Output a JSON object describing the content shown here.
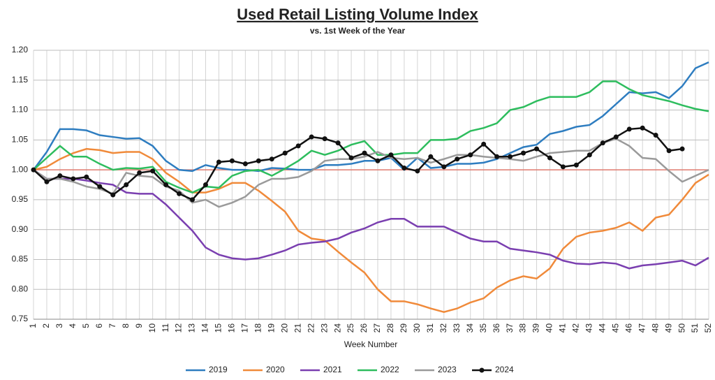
{
  "chart_data": {
    "type": "line",
    "title": "Used Retail Listing Volume Index",
    "subtitle": "vs. 1st Week of the Year",
    "x_label": "Week Number",
    "categories": [
      1,
      2,
      3,
      4,
      5,
      6,
      7,
      8,
      9,
      10,
      11,
      12,
      13,
      14,
      15,
      16,
      17,
      18,
      19,
      20,
      21,
      22,
      23,
      24,
      25,
      26,
      27,
      28,
      29,
      30,
      31,
      32,
      33,
      34,
      35,
      36,
      37,
      38,
      39,
      40,
      41,
      42,
      43,
      44,
      45,
      46,
      47,
      48,
      49,
      50,
      51,
      52
    ],
    "ylim": [
      0.75,
      1.2
    ],
    "yticks": [
      {
        "value": 0.75,
        "label": "0.75"
      },
      {
        "value": 0.8,
        "label": "0.80"
      },
      {
        "value": 0.85,
        "label": "0.85"
      },
      {
        "value": 0.9,
        "label": "0.90"
      },
      {
        "value": 0.95,
        "label": "0.95"
      },
      {
        "value": 1.0,
        "label": "1.00"
      },
      {
        "value": 1.05,
        "label": "1.05"
      },
      {
        "value": 1.1,
        "label": "1.10"
      },
      {
        "value": 1.15,
        "label": "1.15"
      },
      {
        "value": 1.2,
        "label": "1.20"
      }
    ],
    "reference_line": 1,
    "reference_color": "#e07b6f",
    "grid": true,
    "legend": "bottom",
    "series": [
      {
        "name": "2019",
        "color": "#2e7dc0",
        "values": [
          1.0,
          1.03,
          1.068,
          1.068,
          1.066,
          1.058,
          1.055,
          1.052,
          1.053,
          1.04,
          1.015,
          1.0,
          0.998,
          1.008,
          1.003,
          1.0,
          1.0,
          0.998,
          1.003,
          1.002,
          1.0,
          1.0,
          1.008,
          1.008,
          1.01,
          1.015,
          1.015,
          1.02,
          1.0,
          1.02,
          1.003,
          1.005,
          1.01,
          1.01,
          1.012,
          1.018,
          1.028,
          1.038,
          1.042,
          1.06,
          1.065,
          1.072,
          1.075,
          1.09,
          1.11,
          1.13,
          1.128,
          1.13,
          1.12,
          1.14,
          1.17,
          1.18
        ]
      },
      {
        "name": "2020",
        "color": "#f08a3a",
        "values": [
          1.0,
          1.005,
          1.018,
          1.028,
          1.035,
          1.033,
          1.028,
          1.03,
          1.03,
          1.018,
          0.995,
          0.98,
          0.962,
          0.962,
          0.968,
          0.978,
          0.978,
          0.965,
          0.948,
          0.93,
          0.898,
          0.885,
          0.882,
          0.863,
          0.845,
          0.828,
          0.8,
          0.78,
          0.78,
          0.775,
          0.768,
          0.762,
          0.768,
          0.778,
          0.785,
          0.803,
          0.815,
          0.822,
          0.818,
          0.835,
          0.868,
          0.888,
          0.895,
          0.898,
          0.903,
          0.912,
          0.898,
          0.92,
          0.925,
          0.95,
          0.978,
          0.992
        ]
      },
      {
        "name": "2021",
        "color": "#7a3fb0",
        "values": [
          1.0,
          0.985,
          0.985,
          0.985,
          0.982,
          0.978,
          0.975,
          0.962,
          0.96,
          0.96,
          0.942,
          0.92,
          0.898,
          0.87,
          0.858,
          0.852,
          0.85,
          0.852,
          0.858,
          0.865,
          0.875,
          0.878,
          0.88,
          0.885,
          0.895,
          0.902,
          0.912,
          0.918,
          0.918,
          0.905,
          0.905,
          0.905,
          0.895,
          0.885,
          0.88,
          0.88,
          0.868,
          0.865,
          0.862,
          0.858,
          0.848,
          0.843,
          0.842,
          0.845,
          0.843,
          0.835,
          0.84,
          0.842,
          0.845,
          0.848,
          0.84,
          0.853
        ]
      },
      {
        "name": "2022",
        "color": "#2ebd5e",
        "values": [
          1.0,
          1.02,
          1.04,
          1.022,
          1.022,
          1.01,
          1.0,
          1.003,
          1.002,
          1.005,
          0.98,
          0.97,
          0.962,
          0.972,
          0.97,
          0.99,
          0.998,
          1.0,
          0.99,
          1.002,
          1.015,
          1.032,
          1.025,
          1.032,
          1.042,
          1.048,
          1.025,
          1.025,
          1.028,
          1.028,
          1.05,
          1.05,
          1.052,
          1.065,
          1.07,
          1.078,
          1.1,
          1.105,
          1.115,
          1.122,
          1.122,
          1.122,
          1.13,
          1.148,
          1.148,
          1.135,
          1.125,
          1.12,
          1.115,
          1.108,
          1.102,
          1.098
        ]
      },
      {
        "name": "2023",
        "color": "#9a9a9a",
        "values": [
          1.0,
          0.985,
          0.985,
          0.98,
          0.972,
          0.968,
          0.96,
          0.995,
          0.99,
          0.988,
          0.972,
          0.965,
          0.945,
          0.95,
          0.938,
          0.945,
          0.955,
          0.975,
          0.985,
          0.985,
          0.988,
          0.998,
          1.015,
          1.018,
          1.018,
          1.022,
          1.03,
          1.02,
          1.018,
          1.02,
          1.012,
          1.018,
          1.025,
          1.025,
          1.022,
          1.02,
          1.018,
          1.015,
          1.022,
          1.028,
          1.03,
          1.032,
          1.032,
          1.045,
          1.052,
          1.04,
          1.02,
          1.018,
          0.998,
          0.98,
          0.99,
          1.0
        ]
      },
      {
        "name": "2024",
        "color": "#111111",
        "markers": true,
        "values": [
          1.0,
          0.98,
          0.99,
          0.985,
          0.988,
          0.972,
          0.958,
          0.975,
          0.995,
          0.998,
          0.975,
          0.96,
          0.95,
          0.975,
          1.013,
          1.015,
          1.01,
          1.015,
          1.018,
          1.028,
          1.04,
          1.055,
          1.052,
          1.045,
          1.02,
          1.028,
          1.015,
          1.025,
          1.003,
          0.998,
          1.022,
          1.005,
          1.018,
          1.025,
          1.043,
          1.022,
          1.022,
          1.028,
          1.035,
          1.02,
          1.005,
          1.008,
          1.025,
          1.045,
          1.055,
          1.068,
          1.07,
          1.058,
          1.032,
          1.035,
          null,
          null
        ]
      }
    ]
  }
}
